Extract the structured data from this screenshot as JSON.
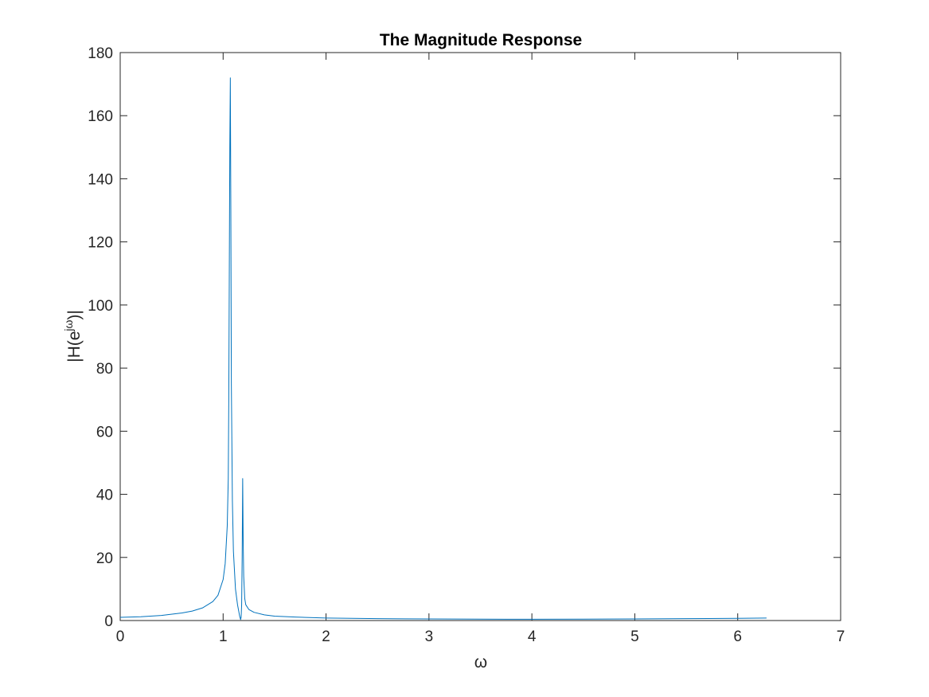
{
  "chart_data": {
    "type": "line",
    "title": "The Magnitude Response",
    "xlabel": "ω",
    "ylabel": {
      "prefix": "|H(e",
      "superscript": "jω",
      "suffix": ")|"
    },
    "xlim": [
      0,
      7
    ],
    "ylim": [
      0,
      180
    ],
    "xticks": [
      0,
      1,
      2,
      3,
      4,
      5,
      6,
      7
    ],
    "yticks": [
      0,
      20,
      40,
      60,
      80,
      100,
      120,
      140,
      160,
      180
    ],
    "grid": false,
    "legend": "none",
    "series": [
      {
        "color": "#0072BD",
        "x": [
          0,
          0.2,
          0.4,
          0.6,
          0.7,
          0.8,
          0.9,
          0.95,
          1.0,
          1.02,
          1.04,
          1.05,
          1.055,
          1.06,
          1.065,
          1.07,
          1.075,
          1.08,
          1.09,
          1.1,
          1.12,
          1.14,
          1.16,
          1.17,
          1.175,
          1.18,
          1.185,
          1.19,
          1.195,
          1.2,
          1.21,
          1.22,
          1.25,
          1.3,
          1.4,
          1.5,
          1.7,
          2.0,
          2.5,
          3.0,
          3.5,
          4.0,
          4.5,
          5.0,
          5.5,
          6.0,
          6.28
        ],
        "y": [
          1.0,
          1.2,
          1.6,
          2.4,
          3.0,
          4.0,
          6.0,
          8.0,
          13.0,
          18.0,
          30.0,
          45.0,
          70.0,
          110.0,
          150.0,
          172.0,
          130.0,
          75.0,
          38.0,
          22.0,
          10.0,
          5.0,
          1.5,
          0.3,
          1.0,
          5.0,
          20.0,
          45.0,
          25.0,
          14.0,
          7.0,
          5.0,
          3.5,
          2.6,
          1.8,
          1.4,
          1.1,
          0.8,
          0.6,
          0.5,
          0.45,
          0.4,
          0.45,
          0.5,
          0.6,
          0.7,
          0.8
        ]
      }
    ]
  }
}
